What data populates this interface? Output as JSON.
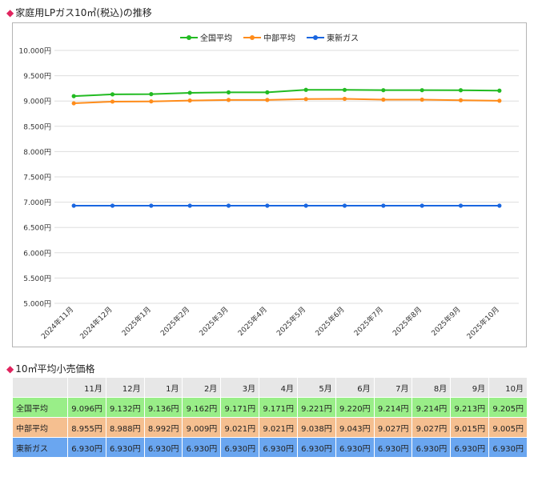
{
  "chart_title": "家庭用LPガス10㎥(税込)の推移",
  "table_title": "10㎥平均小売価格",
  "colors": {
    "title_marker": "#e0245e",
    "national": "#22bb22",
    "chubu": "#ff8c1a",
    "tohoshin": "#1a66e0",
    "row_national": "#99ee88",
    "row_chubu": "#f5bf90",
    "row_tohoshin": "#6aa6f0",
    "header_bg": "#e7e7e7",
    "grid": "#dddddd"
  },
  "chart_data": {
    "type": "line",
    "title": "家庭用LPガス10㎥(税込)の推移",
    "categories": [
      "2024年11月",
      "2024年12月",
      "2025年1月",
      "2025年2月",
      "2025年3月",
      "2025年4月",
      "2025年5月",
      "2025年6月",
      "2025年7月",
      "2025年8月",
      "2025年9月",
      "2025年10月"
    ],
    "ylim": [
      5000,
      10000
    ],
    "ytick_step": 500,
    "ytick_labels": [
      "10.000円",
      "9.500円",
      "9.000円",
      "8.500円",
      "8.000円",
      "7.500円",
      "7.000円",
      "6.500円",
      "6.000円",
      "5.500円",
      "5.000円"
    ],
    "grid": true,
    "legend_position": "top-center",
    "series": [
      {
        "name": "全国平均",
        "color": "#22bb22",
        "values": [
          9096,
          9132,
          9136,
          9162,
          9171,
          9171,
          9221,
          9220,
          9214,
          9214,
          9213,
          9205
        ]
      },
      {
        "name": "中部平均",
        "color": "#ff8c1a",
        "values": [
          8955,
          8988,
          8992,
          9009,
          9021,
          9021,
          9038,
          9043,
          9027,
          9027,
          9015,
          9005
        ]
      },
      {
        "name": "東新ガス",
        "color": "#1a66e0",
        "values": [
          6930,
          6930,
          6930,
          6930,
          6930,
          6930,
          6930,
          6930,
          6930,
          6930,
          6930,
          6930
        ]
      }
    ]
  },
  "table": {
    "months": [
      "11月",
      "12月",
      "1月",
      "2月",
      "3月",
      "4月",
      "5月",
      "6月",
      "7月",
      "8月",
      "9月",
      "10月"
    ],
    "rows": [
      {
        "label": "全国平均",
        "bg": "#99ee88",
        "cells": [
          "9.096円",
          "9.132円",
          "9.136円",
          "9.162円",
          "9.171円",
          "9.171円",
          "9.221円",
          "9.220円",
          "9.214円",
          "9.214円",
          "9.213円",
          "9.205円"
        ]
      },
      {
        "label": "中部平均",
        "bg": "#f5bf90",
        "cells": [
          "8.955円",
          "8.988円",
          "8.992円",
          "9.009円",
          "9.021円",
          "9.021円",
          "9.038円",
          "9.043円",
          "9.027円",
          "9.027円",
          "9.015円",
          "9.005円"
        ]
      },
      {
        "label": "東新ガス",
        "bg": "#6aa6f0",
        "cells": [
          "6.930円",
          "6.930円",
          "6.930円",
          "6.930円",
          "6.930円",
          "6.930円",
          "6.930円",
          "6.930円",
          "6.930円",
          "6.930円",
          "6.930円",
          "6.930円"
        ]
      }
    ]
  }
}
